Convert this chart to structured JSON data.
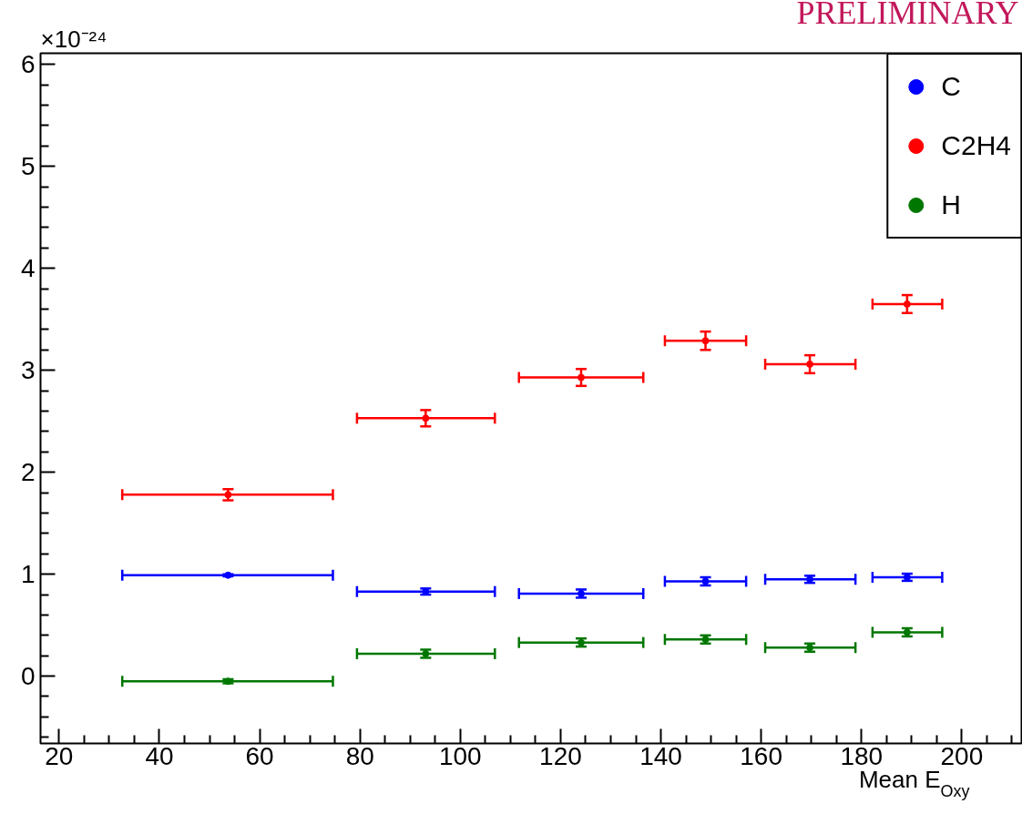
{
  "chart_data": {
    "type": "scatter",
    "title": "PRELIMINARY",
    "xlabel": "Mean E$_{Oxy}$",
    "annotations": [
      "×10⁻²⁴"
    ],
    "x": [
      53.7,
      93.1,
      124.1,
      148.9,
      169.7,
      189.1
    ],
    "series": [
      {
        "name": "C",
        "color": "#0000ff",
        "values": [
          0.99,
          0.83,
          0.81,
          0.93,
          0.95,
          0.97
        ],
        "errors": [
          0.01,
          0.03,
          0.04,
          0.04,
          0.035,
          0.035
        ],
        "xerrors": [
          [
            32.6,
            74.6
          ],
          [
            79.4,
            106.9
          ],
          [
            111.7,
            136.5
          ],
          [
            140.8,
            157.0
          ],
          [
            160.8,
            178.8
          ],
          [
            182.2,
            196.1
          ]
        ]
      },
      {
        "name": "C2H4",
        "color": "#ff0000",
        "values": [
          1.78,
          2.53,
          2.93,
          3.29,
          3.06,
          3.65
        ],
        "errors": [
          0.055,
          0.08,
          0.083,
          0.09,
          0.088,
          0.088
        ],
        "xerrors": [
          [
            32.6,
            74.6
          ],
          [
            79.4,
            106.9
          ],
          [
            111.7,
            136.5
          ],
          [
            140.8,
            157.0
          ],
          [
            160.8,
            178.8
          ],
          [
            182.2,
            196.1
          ]
        ]
      },
      {
        "name": "H",
        "color": "#007700",
        "values": [
          -0.05,
          0.22,
          0.33,
          0.36,
          0.28,
          0.43
        ],
        "errors": [
          0.02,
          0.04,
          0.04,
          0.04,
          0.04,
          0.04
        ],
        "xerrors": [
          [
            32.6,
            74.6
          ],
          [
            79.4,
            106.9
          ],
          [
            111.7,
            136.5
          ],
          [
            140.8,
            157.0
          ],
          [
            160.8,
            178.8
          ],
          [
            182.2,
            196.1
          ]
        ]
      }
    ],
    "xlim": [
      16.3,
      212.1
    ],
    "ylim": [
      -0.66,
      6.11
    ],
    "xticks": [
      20,
      40,
      60,
      80,
      100,
      120,
      140,
      160,
      180,
      200
    ],
    "yticks": [
      0,
      1,
      2,
      3,
      4,
      5,
      6
    ],
    "legend": "top right",
    "grid": false
  }
}
